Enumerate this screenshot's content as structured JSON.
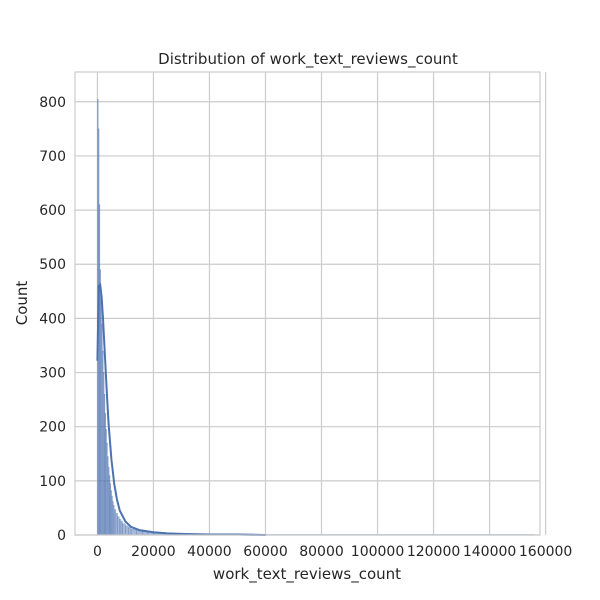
{
  "chart_data": {
    "type": "histogram",
    "title": "Distribution of work_text_reviews_count",
    "xlabel": "work_text_reviews_count",
    "ylabel": "Count",
    "xlim": [
      -8000,
      158000
    ],
    "ylim": [
      0,
      855
    ],
    "x_ticks": [
      0,
      20000,
      40000,
      60000,
      80000,
      100000,
      120000,
      140000,
      160000
    ],
    "y_ticks": [
      0,
      100,
      200,
      300,
      400,
      500,
      600,
      700,
      800
    ],
    "grid": true,
    "bar_color": "#4c72b0",
    "kde_color": "#4c72b0",
    "bins": {
      "bin_width": 300,
      "starts": [
        0,
        300,
        600,
        900,
        1200,
        1500,
        1800,
        2100,
        2400,
        2700,
        3000,
        3300,
        3600,
        3900,
        4200,
        4500,
        4800,
        5100,
        5400,
        5700,
        6000,
        6600,
        7200,
        7800,
        8400,
        9000,
        10000,
        11000,
        12000,
        14000,
        16000,
        18000,
        20000,
        25000,
        30000,
        40000,
        50000
      ],
      "ends": [
        300,
        600,
        900,
        1200,
        1500,
        1800,
        2100,
        2400,
        2700,
        3000,
        3300,
        3600,
        3900,
        4200,
        4500,
        4800,
        5100,
        5400,
        5700,
        6000,
        6600,
        7200,
        7800,
        8400,
        9000,
        10000,
        11000,
        12000,
        14000,
        16000,
        18000,
        20000,
        25000,
        30000,
        40000,
        50000,
        156000
      ],
      "counts": [
        805,
        750,
        610,
        490,
        440,
        390,
        340,
        300,
        260,
        225,
        195,
        170,
        145,
        125,
        110,
        95,
        82,
        72,
        62,
        55,
        47,
        40,
        34,
        29,
        25,
        21,
        17,
        14,
        11,
        8,
        6,
        5,
        4,
        3,
        2,
        1.5,
        1
      ]
    },
    "kde": {
      "x": [
        0,
        500,
        1000,
        1500,
        2000,
        2500,
        3000,
        3500,
        4000,
        5000,
        6000,
        7000,
        8000,
        10000,
        12000,
        15000,
        20000,
        25000,
        30000,
        40000,
        50000,
        60000
      ],
      "y": [
        322,
        460,
        462,
        440,
        400,
        350,
        300,
        250,
        205,
        140,
        95,
        65,
        45,
        25,
        15,
        9,
        5,
        3,
        2,
        1,
        1,
        0
      ]
    }
  }
}
